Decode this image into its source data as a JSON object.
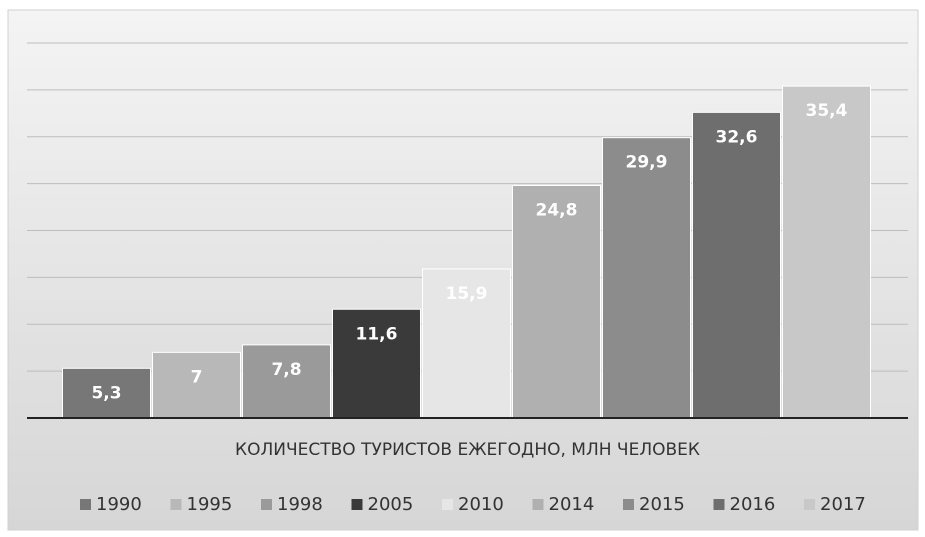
{
  "chart_data": {
    "type": "bar",
    "categories": [
      "КОЛИЧЕСТВО ТУРИСТОВ ЕЖЕГОДНО, МЛН ЧЕЛОВЕК"
    ],
    "series": [
      {
        "name": "1990",
        "color": "#777777",
        "values": [
          5.3
        ],
        "value_labels": [
          "5,3"
        ]
      },
      {
        "name": "1995",
        "color": "#b8b8b8",
        "values": [
          7
        ],
        "value_labels": [
          "7"
        ]
      },
      {
        "name": "1998",
        "color": "#9a9a9a",
        "values": [
          7.8
        ],
        "value_labels": [
          "7,8"
        ]
      },
      {
        "name": "2005",
        "color": "#3a3a3a",
        "values": [
          11.6
        ],
        "value_labels": [
          "11,6"
        ]
      },
      {
        "name": "2010",
        "color": "#e6e6e6",
        "values": [
          15.9
        ],
        "value_labels": [
          "15,9"
        ]
      },
      {
        "name": "2014",
        "color": "#b0b0b0",
        "values": [
          24.8
        ],
        "value_labels": [
          "24,8"
        ]
      },
      {
        "name": "2015",
        "color": "#8c8c8c",
        "values": [
          29.9
        ],
        "value_labels": [
          "29,9"
        ]
      },
      {
        "name": "2016",
        "color": "#6e6e6e",
        "values": [
          32.6
        ],
        "value_labels": [
          "32,6"
        ]
      },
      {
        "name": "2017",
        "color": "#c8c8c8",
        "values": [
          35.4
        ],
        "value_labels": [
          "35,4"
        ]
      }
    ],
    "ylim": [
      0,
      40
    ],
    "yticks": [
      0,
      5,
      10,
      15,
      20,
      25,
      30,
      35,
      40
    ],
    "grid": true,
    "legend": "bottom"
  }
}
